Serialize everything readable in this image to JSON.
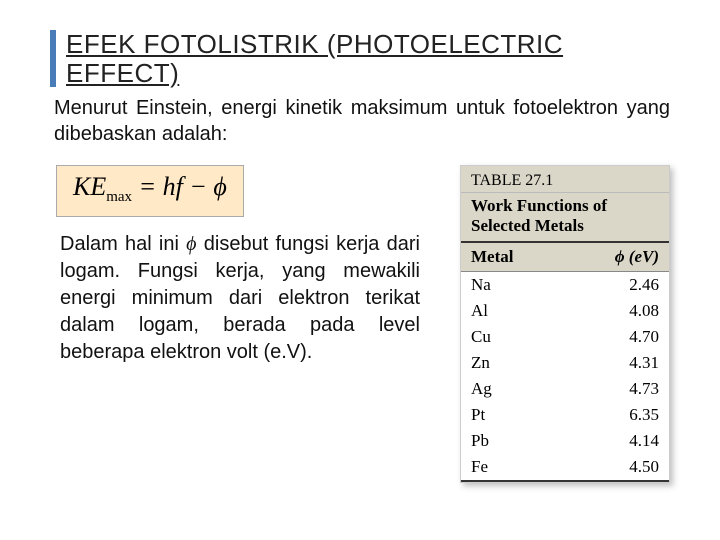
{
  "title": {
    "line1": "EFEK FOTOLISTRIK (PHOTOELECTRIC",
    "line2": "EFFECT)",
    "bar_color": "#4a7db8"
  },
  "intro_text": "Menurut Einstein, energi kinetik maksimum untuk fotoelektron yang dibebaskan adalah:",
  "formula": {
    "lhs": "KE",
    "sub": "max",
    "eq": " = ",
    "rhs1": "hf",
    "minus": " − ",
    "rhs2": "ϕ",
    "bg": "#ffe9c7"
  },
  "para2_pre": "Dalam hal ini ",
  "para2_phi": "ϕ",
  "para2_post": " disebut fungsi kerja dari logam. Fungsi kerja, yang mewakili energi minimum dari elektron terikat dalam logam, berada pada level beberapa elektron volt (e.V).",
  "table": {
    "number": "TABLE 27.1",
    "caption": "Work Functions of Selected Metals",
    "col1": "Metal",
    "col2": "ϕ (eV)",
    "header_bg": "#dad7c8",
    "rows": [
      {
        "metal": "Na",
        "phi": "2.46"
      },
      {
        "metal": "Al",
        "phi": "4.08"
      },
      {
        "metal": "Cu",
        "phi": "4.70"
      },
      {
        "metal": "Zn",
        "phi": "4.31"
      },
      {
        "metal": "Ag",
        "phi": "4.73"
      },
      {
        "metal": "Pt",
        "phi": "6.35"
      },
      {
        "metal": "Pb",
        "phi": "4.14"
      },
      {
        "metal": "Fe",
        "phi": "4.50"
      }
    ]
  }
}
